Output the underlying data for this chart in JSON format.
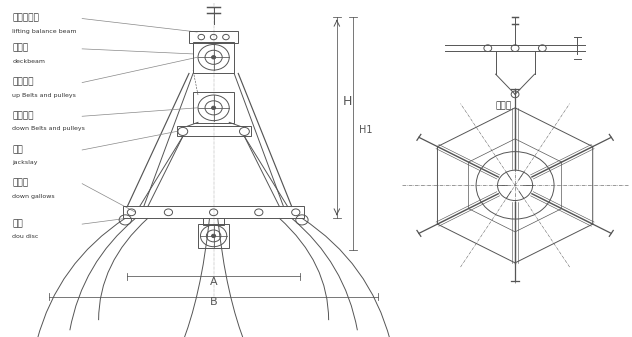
{
  "bg_color": "#ffffff",
  "line_color": "#555555",
  "line_color_dark": "#333333",
  "text_color": "#333333",
  "fig_width": 6.32,
  "fig_height": 3.37,
  "labels": {
    "label1_zh": "提升平衡梁",
    "label1_en": "lifting balance beam",
    "label2_zh": "上承梁",
    "label2_en": "deckbeam",
    "label3_zh": "上滑輪組",
    "label3_en": "up Belts and pulleys",
    "label4_zh": "下滑輪組",
    "label4_en": "down Belts and pulleys",
    "label5_zh": "擁杆",
    "label5_en": "jackslay",
    "label6_zh": "下承梁",
    "label6_en": "down gallows",
    "label7_zh": "斗齒",
    "label7_en": "dou disc",
    "label8_zh": "平衡架",
    "label9_zh": "H",
    "label10_zh": "H1",
    "label11_zh": "A",
    "label12_zh": "B"
  }
}
